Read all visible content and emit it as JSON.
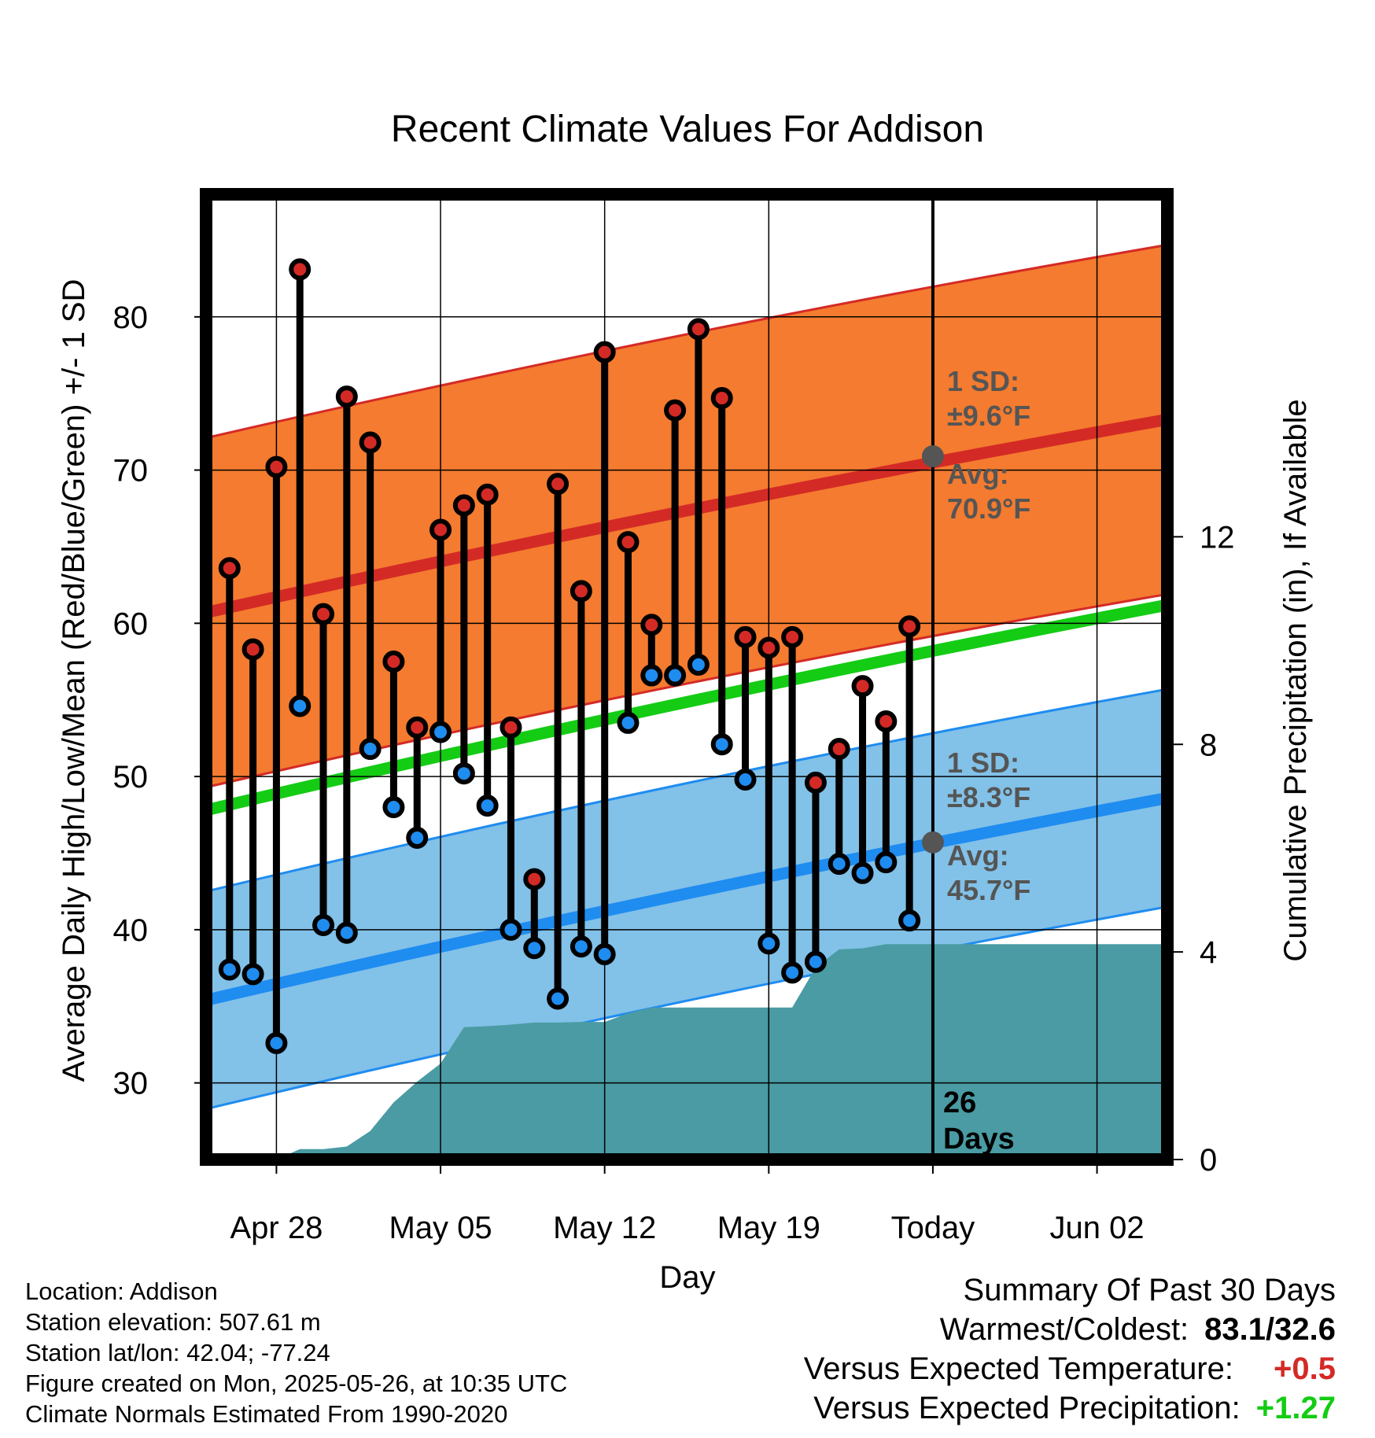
{
  "chart_data": {
    "type": "line",
    "title": "Recent Climate Values For Addison",
    "xlabel": "Day",
    "ylabel": "Average Daily High/Low/Mean (Red/Blue/Green) +/- 1 SD",
    "y2label": "Cumulative Precipitation (in), If Available",
    "ylim": [
      25,
      88
    ],
    "y2lim": [
      0,
      18.6
    ],
    "x_range": [
      "2025-04-25",
      "2025-06-05"
    ],
    "x_ticks": [
      {
        "date": "2025-04-28",
        "label": "Apr 28"
      },
      {
        "date": "2025-05-05",
        "label": "May 05"
      },
      {
        "date": "2025-05-12",
        "label": "May 12"
      },
      {
        "date": "2025-05-19",
        "label": "May 19"
      },
      {
        "date": "2025-05-26",
        "label": "Today"
      },
      {
        "date": "2025-06-02",
        "label": "Jun 02"
      }
    ],
    "y_ticks": [
      30,
      40,
      50,
      60,
      70,
      80
    ],
    "y2_ticks": [
      0,
      4,
      8,
      12
    ],
    "grid": true,
    "today": "2025-05-26",
    "today_label": [
      "26",
      "Days"
    ],
    "colors": {
      "high_band": "#f47b2f",
      "high_line": "#d42a26",
      "low_band": "#82c1e8",
      "low_line": "#1f8cf0",
      "mean_line": "#14cc14",
      "precip": "#4a9ba3",
      "avg_marker": "#555555",
      "high_dot": "#d42a26",
      "low_dot": "#1f8cf0"
    },
    "normals": {
      "dates": [
        "2025-04-25",
        "2025-06-05"
      ],
      "high_mean": [
        60.7,
        73.3
      ],
      "high_sd": 11.4,
      "low_mean": [
        35.4,
        48.6
      ],
      "low_sd": 7.1,
      "mean_line": [
        47.8,
        61.2
      ]
    },
    "annotations": {
      "high": {
        "sd_title": "1 SD:",
        "sd_value": "±9.6°F",
        "avg_title": "Avg:",
        "avg_value": "70.9°F",
        "avg": 70.9
      },
      "low": {
        "sd_title": "1 SD:",
        "sd_value": "±8.3°F",
        "avg_title": "Avg:",
        "avg_value": "45.7°F",
        "avg": 45.7
      }
    },
    "series": [
      {
        "name": "High",
        "x": [
          "2025-04-26",
          "2025-04-27",
          "2025-04-28",
          "2025-04-29",
          "2025-04-30",
          "2025-05-01",
          "2025-05-02",
          "2025-05-03",
          "2025-05-04",
          "2025-05-05",
          "2025-05-06",
          "2025-05-07",
          "2025-05-08",
          "2025-05-09",
          "2025-05-10",
          "2025-05-11",
          "2025-05-12",
          "2025-05-13",
          "2025-05-14",
          "2025-05-15",
          "2025-05-16",
          "2025-05-17",
          "2025-05-18",
          "2025-05-19",
          "2025-05-20",
          "2025-05-21",
          "2025-05-22",
          "2025-05-23",
          "2025-05-24",
          "2025-05-25"
        ],
        "values": [
          63.6,
          58.3,
          70.2,
          83.1,
          60.6,
          74.8,
          71.8,
          57.5,
          53.2,
          66.1,
          67.7,
          68.4,
          53.2,
          43.3,
          69.1,
          62.1,
          77.7,
          65.3,
          59.9,
          73.9,
          79.2,
          74.7,
          59.1,
          58.4,
          59.1,
          49.6,
          51.8,
          55.9,
          53.6,
          59.8
        ]
      },
      {
        "name": "Low",
        "x": [
          "2025-04-26",
          "2025-04-27",
          "2025-04-28",
          "2025-04-29",
          "2025-04-30",
          "2025-05-01",
          "2025-05-02",
          "2025-05-03",
          "2025-05-04",
          "2025-05-05",
          "2025-05-06",
          "2025-05-07",
          "2025-05-08",
          "2025-05-09",
          "2025-05-10",
          "2025-05-11",
          "2025-05-12",
          "2025-05-13",
          "2025-05-14",
          "2025-05-15",
          "2025-05-16",
          "2025-05-17",
          "2025-05-18",
          "2025-05-19",
          "2025-05-20",
          "2025-05-21",
          "2025-05-22",
          "2025-05-23",
          "2025-05-24",
          "2025-05-25"
        ],
        "values": [
          37.4,
          37.1,
          32.6,
          54.6,
          40.3,
          39.8,
          51.8,
          48.0,
          46.0,
          52.9,
          50.2,
          48.1,
          40.0,
          38.8,
          35.5,
          38.9,
          38.4,
          53.5,
          56.6,
          56.6,
          57.3,
          52.1,
          49.8,
          39.1,
          37.2,
          37.9,
          44.3,
          43.7,
          44.4,
          40.6
        ]
      },
      {
        "name": "Cumulative Precipitation",
        "x": [
          "2025-04-28",
          "2025-04-29",
          "2025-04-30",
          "2025-05-01",
          "2025-05-02",
          "2025-05-03",
          "2025-05-04",
          "2025-05-05",
          "2025-05-06",
          "2025-05-07",
          "2025-05-08",
          "2025-05-09",
          "2025-05-10",
          "2025-05-11",
          "2025-05-12",
          "2025-05-13",
          "2025-05-14",
          "2025-05-15",
          "2025-05-16",
          "2025-05-17",
          "2025-05-18",
          "2025-05-19",
          "2025-05-20",
          "2025-05-21",
          "2025-05-22",
          "2025-05-23",
          "2025-05-24",
          "2025-05-25",
          "2025-05-26",
          "2025-06-05"
        ],
        "values": [
          0,
          0.2,
          0.2,
          0.25,
          0.55,
          1.1,
          1.5,
          1.85,
          2.55,
          2.57,
          2.6,
          2.64,
          2.64,
          2.65,
          2.65,
          2.82,
          2.93,
          2.93,
          2.93,
          2.93,
          2.93,
          2.93,
          2.93,
          3.7,
          4.05,
          4.07,
          4.15,
          4.15,
          4.15,
          4.15
        ]
      }
    ]
  },
  "footer": {
    "location": "Location: Addison",
    "elevation": "Station elevation: 507.61 m",
    "latlon": "Station lat/lon: 42.04; -77.24",
    "created": "Figure created on Mon, 2025-05-26, at 10:35 UTC",
    "normals": "Climate Normals Estimated From 1990-2020"
  },
  "summary": {
    "title": "Summary Of Past 30 Days",
    "warm_cold_label": "Warmest/Coldest:",
    "warm_cold_value": "83.1/32.6",
    "temp_label": "Versus Expected Temperature:",
    "temp_value": "+0.5",
    "temp_color": "#d42a26",
    "precip_label": "Versus Expected Precipitation:",
    "precip_value": "+1.27",
    "precip_color": "#14cc14"
  }
}
